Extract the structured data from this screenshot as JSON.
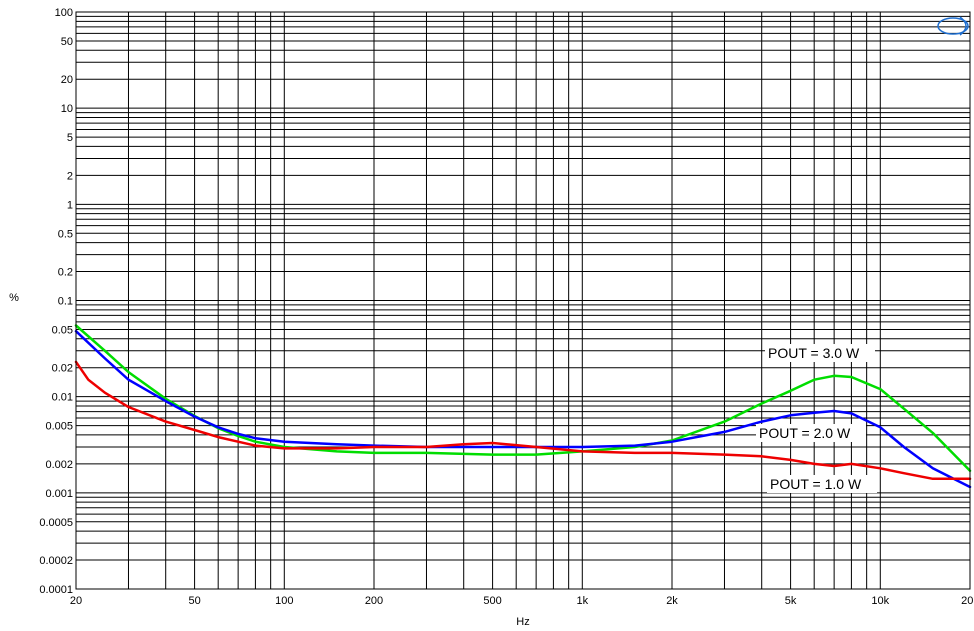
{
  "chart_data": {
    "type": "line",
    "title": "",
    "xlabel": "Hz",
    "ylabel": "%",
    "x_scale": "log",
    "y_scale": "log",
    "xlim": [
      20,
      20000
    ],
    "ylim": [
      0.0001,
      100
    ],
    "grid": true,
    "x_ticks": [
      20,
      50,
      100,
      200,
      500,
      1000,
      2000,
      5000,
      10000,
      20000
    ],
    "x_tick_labels": [
      "20",
      "50",
      "100",
      "200",
      "500",
      "1k",
      "2k",
      "5k",
      "10k",
      "20k"
    ],
    "y_ticks": [
      0.0001,
      0.0002,
      0.0005,
      0.001,
      0.002,
      0.005,
      0.01,
      0.02,
      0.05,
      0.1,
      0.2,
      0.5,
      1,
      2,
      5,
      10,
      20,
      50,
      100
    ],
    "y_tick_labels": [
      "0.0001",
      "0.0002",
      "0.0005",
      "0.001",
      "0.002",
      "0.005",
      "0.01",
      "0.02",
      "0.05",
      "0.1",
      "0.2",
      "0.5",
      "1",
      "2",
      "5",
      "10",
      "20",
      "50",
      "100"
    ],
    "series": [
      {
        "color": "#00dd00",
        "x": [
          20,
          25,
          30,
          40,
          50,
          60,
          70,
          80,
          100,
          150,
          200,
          300,
          500,
          700,
          1000,
          1500,
          2000,
          3000,
          4000,
          5000,
          6000,
          7000,
          8000,
          10000,
          12000,
          15000,
          20000
        ],
        "y": [
          0.055,
          0.03,
          0.018,
          0.0095,
          0.0063,
          0.0047,
          0.0039,
          0.0034,
          0.003,
          0.0027,
          0.0026,
          0.0026,
          0.0025,
          0.0025,
          0.0027,
          0.003,
          0.0035,
          0.0055,
          0.0085,
          0.0115,
          0.015,
          0.0165,
          0.016,
          0.012,
          0.0075,
          0.0042,
          0.0017
        ]
      },
      {
        "color": "#0000ff",
        "x": [
          20,
          25,
          30,
          40,
          50,
          60,
          70,
          80,
          100,
          150,
          200,
          300,
          500,
          700,
          1000,
          1500,
          2000,
          3000,
          4000,
          5000,
          6000,
          7000,
          8000,
          10000,
          12000,
          15000,
          20000
        ],
        "y": [
          0.048,
          0.025,
          0.015,
          0.009,
          0.0062,
          0.0048,
          0.0041,
          0.0037,
          0.0034,
          0.0032,
          0.0031,
          0.003,
          0.003,
          0.003,
          0.003,
          0.0031,
          0.0034,
          0.0043,
          0.0055,
          0.0064,
          0.0068,
          0.0071,
          0.0067,
          0.0048,
          0.003,
          0.0018,
          0.00115
        ]
      },
      {
        "color": "#ee0000",
        "x": [
          20,
          22,
          25,
          30,
          40,
          50,
          60,
          70,
          80,
          100,
          150,
          200,
          300,
          400,
          500,
          700,
          1000,
          1500,
          2000,
          3000,
          4000,
          5000,
          6000,
          7000,
          8000,
          10000,
          12000,
          15000,
          20000
        ],
        "y": [
          0.023,
          0.015,
          0.011,
          0.0078,
          0.0055,
          0.0045,
          0.0038,
          0.0034,
          0.0031,
          0.0029,
          0.0029,
          0.003,
          0.003,
          0.0032,
          0.0033,
          0.003,
          0.0027,
          0.0026,
          0.0026,
          0.0025,
          0.0024,
          0.0022,
          0.002,
          0.0019,
          0.002,
          0.0018,
          0.0016,
          0.0014,
          0.0014
        ]
      }
    ],
    "annotations": [
      {
        "text": "POUT = 3.0 W"
      },
      {
        "text": "POUT = 2.0 W"
      },
      {
        "text": "POUT = 1.0 W"
      }
    ]
  }
}
